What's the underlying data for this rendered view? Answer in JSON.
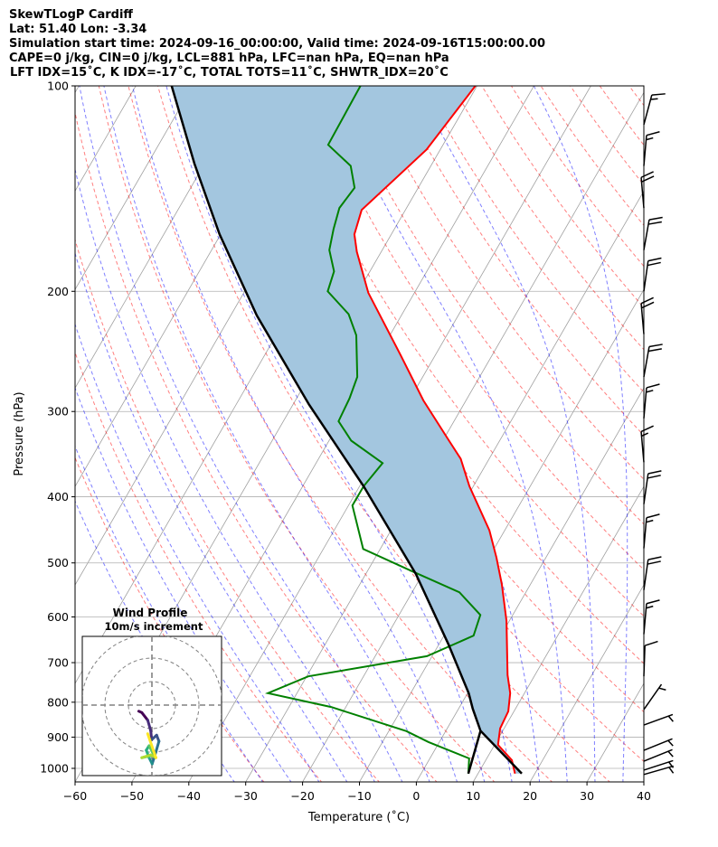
{
  "header": {
    "line1": "SkewTLogP Cardiff",
    "line2": "Lat: 51.40   Lon: -3.34",
    "line3": "Simulation start time: 2024-09-16_00:00:00, Valid time: 2024-09-16T15:00:00.00",
    "line4": "CAPE=0 j/kg, CIN=0 j/kg, LCL=881 hPa, LFC=nan hPa, EQ=nan hPa",
    "line5": "LFT IDX=15˚C, K IDX=-17˚C, TOTAL TOTS=11˚C, SHWTR_IDX=20˚C"
  },
  "chart_data": {
    "type": "line",
    "title": "SkewTLogP Cardiff",
    "xlabel": "Temperature (˚C)",
    "ylabel": "Pressure (hPa)",
    "xlim": [
      -60,
      40
    ],
    "ylim": [
      1050,
      100
    ],
    "yscale": "log",
    "skew_deg": 30,
    "xticks": [
      "−60",
      "−50",
      "−40",
      "−30",
      "−20",
      "−10",
      "0",
      "10",
      "20",
      "30",
      "40"
    ],
    "xtick_values": [
      -60,
      -50,
      -40,
      -30,
      -20,
      -10,
      0,
      10,
      20,
      30,
      40
    ],
    "yticks": [
      "100",
      "200",
      "300",
      "400",
      "500",
      "600",
      "700",
      "800",
      "900",
      "1000"
    ],
    "ytick_values": [
      100,
      200,
      300,
      400,
      500,
      600,
      700,
      800,
      900,
      1000
    ],
    "grid": true,
    "colors": {
      "temperature": "#ff0000",
      "dewpoint": "#008000",
      "parcel": "#000000",
      "fill": "#a3c6df",
      "dry_adiabat": "#ff0000",
      "moist_adiabat": "#0000ff",
      "isotherm": "#a0a0a0"
    },
    "series": [
      {
        "name": "temperature",
        "p": [
          1018,
          973,
          924,
          874,
          825,
          776,
          730,
          608,
          538,
          491,
          448,
          386,
          352,
          330,
          289,
          248,
          201,
          175,
          165,
          152,
          124,
          100
        ],
        "t": [
          16.5,
          14.6,
          10.6,
          9.3,
          9.0,
          7.5,
          5.2,
          -0.5,
          -5.0,
          -8.7,
          -12.7,
          -20.7,
          -25.0,
          -29.1,
          -37.5,
          -46.1,
          -58.1,
          -64.3,
          -66.5,
          -67.7,
          -62.4,
          -60.3
        ]
      },
      {
        "name": "dewpoint",
        "p": [
          1018,
          967,
          915,
          882,
          813,
          776,
          733,
          685,
          639,
          596,
          552,
          514,
          477,
          412,
          386,
          357,
          331,
          310,
          287,
          267,
          232,
          216,
          200,
          187,
          174,
          162,
          151,
          141,
          131,
          122,
          100
        ],
        "t": [
          8.3,
          6.9,
          -1.9,
          -6.9,
          -22.6,
          -35.1,
          -29.7,
          -10.9,
          -4.8,
          -5.7,
          -11.7,
          -22.2,
          -33.0,
          -39.3,
          -39.3,
          -38.3,
          -46.1,
          -50.3,
          -50.7,
          -51.5,
          -55.9,
          -59.4,
          -65.4,
          -66.3,
          -69.3,
          -70.7,
          -71.8,
          -71.2,
          -74.1,
          -80.2,
          -80.5
        ]
      },
      {
        "name": "parcel",
        "p": [
          1018,
          881,
          818,
          776,
          657,
          519,
          386,
          293,
          217,
          165,
          130,
          100
        ],
        "t": [
          17.7,
          6.1,
          2.5,
          0.2,
          -8.4,
          -21.2,
          -39.3,
          -57.2,
          -75.4,
          -90.2,
          -101.8,
          -113.7
        ]
      },
      {
        "name": "parcel_dewpoint_leg",
        "p": [
          1018,
          881
        ],
        "t": [
          8.3,
          6.1
        ]
      }
    ],
    "wind_barbs": {
      "units": "kt",
      "p": [
        114,
        131,
        151,
        174,
        200,
        231,
        267,
        307,
        356,
        410,
        476,
        548,
        636,
        733,
        820,
        864,
        941,
        976,
        1006,
        1021
      ],
      "direction_deg": [
        15,
        5,
        355,
        10,
        8,
        355,
        10,
        5,
        355,
        8,
        5,
        8,
        5,
        2,
        35,
        70,
        68,
        68,
        72,
        74
      ],
      "speed": [
        15,
        15,
        20,
        20,
        20,
        20,
        20,
        15,
        15,
        20,
        15,
        20,
        15,
        10,
        5,
        5,
        5,
        5,
        5,
        5
      ]
    },
    "hodograph": {
      "title": "Wind Profile",
      "subtitle": "10m/s increment",
      "ring_step_ms": 10,
      "u": [
        -5.6,
        -4.3,
        -1.8,
        -0.5,
        -0.1,
        2.0,
        3.0,
        1.7,
        0.1,
        -1.2,
        -2.4,
        -1.2,
        0.8,
        -4.3,
        -0.5,
        1.7,
        -1.8
      ],
      "v": [
        -2.6,
        -3.2,
        -6.4,
        -10.9,
        -14.7,
        -12.8,
        -15.4,
        -19.9,
        -25.0,
        -22.4,
        -19.2,
        -17.3,
        -21.2,
        -22.4,
        -21.2,
        -22.4,
        -12.2
      ]
    }
  }
}
